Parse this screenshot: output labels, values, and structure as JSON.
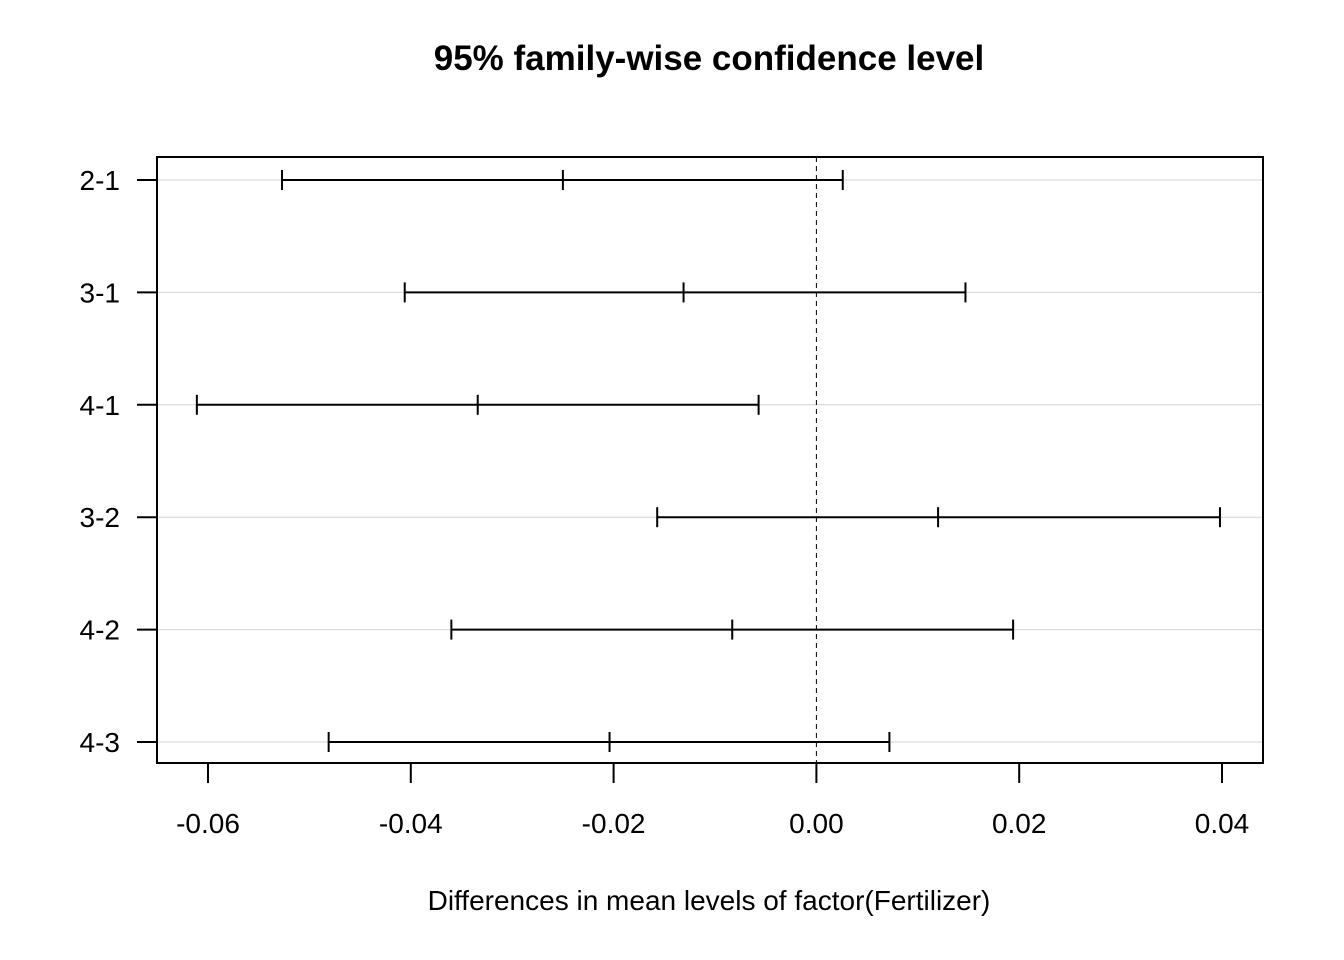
{
  "chart_data": {
    "type": "interval",
    "title": "95% family-wise confidence level",
    "xlabel": "Differences in mean levels of factor(Fertilizer)",
    "ylabel": "",
    "xlim": [
      -0.065,
      0.044
    ],
    "xticks": [
      -0.06,
      -0.04,
      -0.02,
      0.0,
      0.02,
      0.04
    ],
    "xtick_labels": [
      "-0.06",
      "-0.04",
      "-0.02",
      "0.00",
      "0.02",
      "0.04"
    ],
    "reference_line": 0,
    "grid": "horizontal",
    "comparisons": [
      {
        "label": "2-1",
        "lwr": -0.0527,
        "diff": -0.025,
        "upr": 0.0026
      },
      {
        "label": "3-1",
        "lwr": -0.0406,
        "diff": -0.0131,
        "upr": 0.0147
      },
      {
        "label": "4-1",
        "lwr": -0.0611,
        "diff": -0.0334,
        "upr": -0.0057
      },
      {
        "label": "3-2",
        "lwr": -0.0157,
        "diff": 0.012,
        "upr": 0.0398
      },
      {
        "label": "4-2",
        "lwr": -0.036,
        "diff": -0.0083,
        "upr": 0.0194
      },
      {
        "label": "4-3",
        "lwr": -0.0481,
        "diff": -0.0204,
        "upr": 0.0072
      }
    ]
  }
}
